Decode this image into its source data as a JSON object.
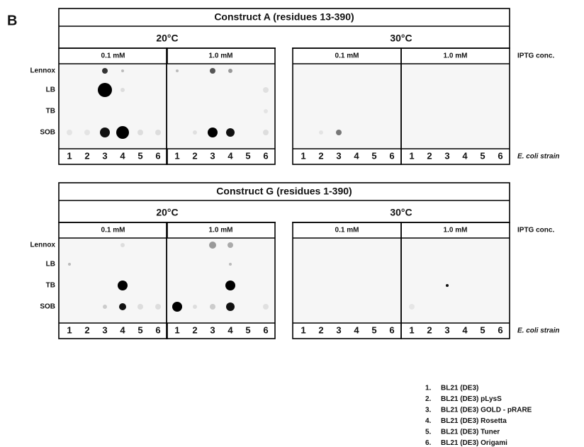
{
  "panel_label": "B",
  "iptg_label": "IPTG conc.",
  "strain_axis_label": "E. coli strain",
  "media": [
    "Lennox",
    "LB",
    "TB",
    "SOB"
  ],
  "strain_numbers": [
    "1",
    "2",
    "3",
    "4",
    "5",
    "6"
  ],
  "panels": [
    {
      "title": "Construct A (residues 13-390)",
      "temperatures": [
        {
          "label": "20°C",
          "concentrations": [
            "0.1 mM",
            "1.0 mM"
          ]
        },
        {
          "label": "30°C",
          "concentrations": [
            "0.1 mM",
            "1.0 mM"
          ]
        }
      ]
    },
    {
      "title": "Construct G (residues 1-390)",
      "temperatures": [
        {
          "label": "20°C",
          "concentrations": [
            "0.1 mM",
            "1.0 mM"
          ]
        },
        {
          "label": "30°C",
          "concentrations": [
            "0.1 mM",
            "1.0 mM"
          ]
        }
      ]
    }
  ],
  "legend": [
    {
      "number": "1.",
      "text": "BL21 (DE3)"
    },
    {
      "number": "2.",
      "text": "BL21 (DE3) pLysS"
    },
    {
      "number": "3.",
      "text": "BL21 (DE3) GOLD - pRARE"
    },
    {
      "number": "4.",
      "text": "BL21 (DE3) Rosetta"
    },
    {
      "number": "5.",
      "text": "BL21 (DE3) Tuner"
    },
    {
      "number": "6.",
      "text": "BL21 (DE3) Origami"
    }
  ]
}
